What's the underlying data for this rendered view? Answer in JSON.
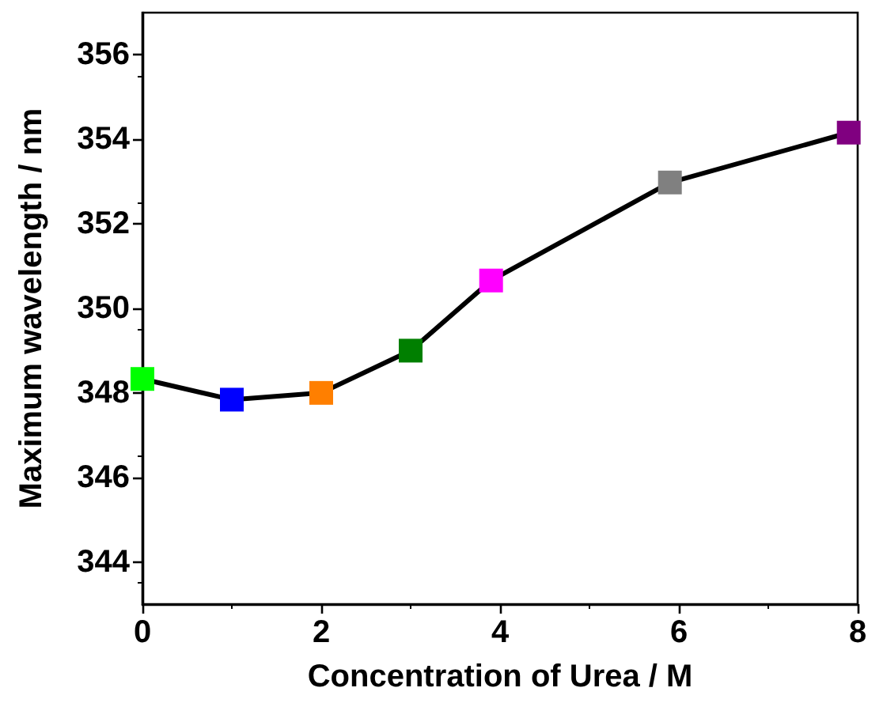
{
  "chart_data": {
    "type": "line",
    "xlabel": "Concentration of Urea / M",
    "ylabel": "Maximum wavelength / nm",
    "x": [
      0,
      1,
      2,
      3,
      3.9,
      5.9,
      7.9
    ],
    "values": [
      348.33,
      347.84,
      348.0,
      349.0,
      350.66,
      352.98,
      354.16
    ],
    "color": "#000000",
    "colors": [
      "#00ff00",
      "#0000ff",
      "#ff7f00",
      "#007f00",
      "#ff00ff",
      "#808080",
      "#800080"
    ],
    "marker": "square",
    "line_style": "solid",
    "xlim": [
      0,
      8
    ],
    "xticks": [
      0,
      2,
      4,
      6,
      8
    ],
    "ylim": [
      343,
      357
    ],
    "yticks": [
      344,
      346,
      348,
      350,
      352,
      354,
      356
    ],
    "grid": false
  }
}
